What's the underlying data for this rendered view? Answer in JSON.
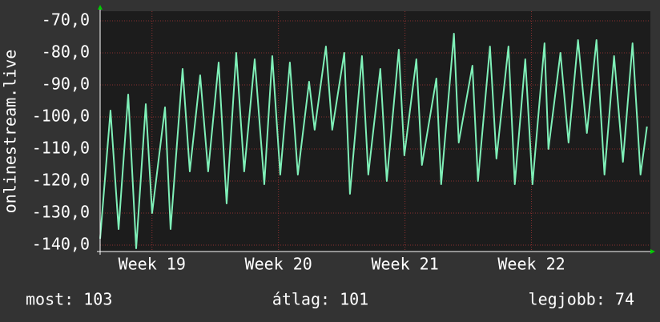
{
  "chart_data": {
    "type": "line",
    "y_label": "onlinestream.live",
    "x": [
      18.59,
      18.672,
      18.736,
      18.812,
      18.875,
      18.951,
      19.001,
      19.103,
      19.147,
      19.242,
      19.299,
      19.381,
      19.444,
      19.527,
      19.59,
      19.666,
      19.729,
      19.812,
      19.888,
      19.951,
      20.014,
      20.09,
      20.153,
      20.242,
      20.286,
      20.375,
      20.425,
      20.52,
      20.565,
      20.66,
      20.71,
      20.805,
      20.856,
      20.951,
      20.995,
      21.09,
      21.134,
      21.248,
      21.286,
      21.387,
      21.425,
      21.533,
      21.577,
      21.672,
      21.723,
      21.818,
      21.868,
      21.951,
      22.008,
      22.103,
      22.134,
      22.229,
      22.293,
      22.368,
      22.438,
      22.514,
      22.577,
      22.653,
      22.723,
      22.799,
      22.862,
      22.913
    ],
    "series": [
      {
        "color": "#7ff0b8",
        "values": [
          -138,
          -98,
          -135,
          -93,
          -141,
          -96,
          -130,
          -97,
          -135,
          -85,
          -117,
          -87,
          -117,
          -83,
          -127,
          -80,
          -117,
          -82,
          -121,
          -81,
          -118,
          -83,
          -118,
          -89,
          -104,
          -78,
          -104,
          -80,
          -124,
          -81,
          -118,
          -85,
          -120,
          -79,
          -112,
          -82,
          -115,
          -88,
          -121,
          -74,
          -108,
          -84,
          -120,
          -78,
          -113,
          -78,
          -121,
          -82,
          -121,
          -77,
          -110,
          -80,
          -108,
          -76,
          -105,
          -76,
          -118,
          -81,
          -114,
          -77,
          -118,
          -103
        ]
      }
    ],
    "xlim": [
      18.59,
      22.94
    ],
    "xticks": [
      {
        "value": 19,
        "label": "Week 19"
      },
      {
        "value": 20,
        "label": "Week 20"
      },
      {
        "value": 21,
        "label": "Week 21"
      },
      {
        "value": 22,
        "label": "Week 22"
      }
    ],
    "ylim": [
      -142,
      -67
    ],
    "yticks": [
      {
        "value": -70,
        "label": "-70,0"
      },
      {
        "value": -80,
        "label": "-80,0"
      },
      {
        "value": -90,
        "label": "-90,0"
      },
      {
        "value": -100,
        "label": "-100,0"
      },
      {
        "value": -110,
        "label": "-110,0"
      },
      {
        "value": -120,
        "label": "-120,0"
      },
      {
        "value": -130,
        "label": "-130,0"
      },
      {
        "value": -140,
        "label": "-140,0"
      }
    ],
    "grid": true,
    "footer": [
      "most: 103",
      "átlag: 101",
      "legjobb: 74"
    ]
  }
}
